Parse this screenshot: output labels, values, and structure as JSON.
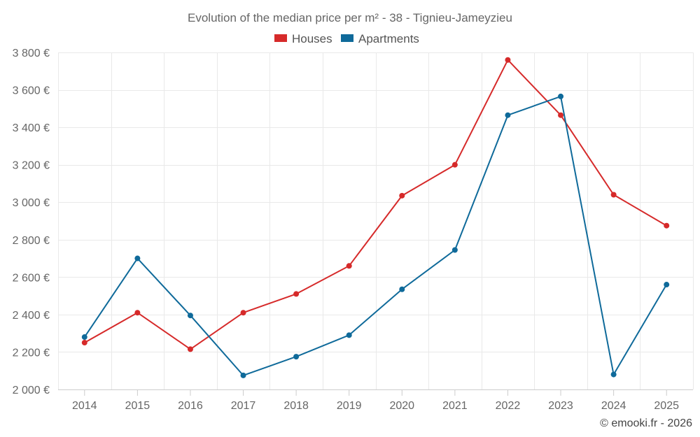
{
  "chart_data": {
    "type": "line",
    "title": "Evolution of the median price per m² - 38 - Tignieu-Jameyzieu",
    "categories": [
      "2014",
      "2015",
      "2016",
      "2017",
      "2018",
      "2019",
      "2020",
      "2021",
      "2022",
      "2023",
      "2024",
      "2025"
    ],
    "series": [
      {
        "name": "Houses",
        "color": "#d62a2a",
        "values": [
          2250,
          2410,
          2215,
          2410,
          2510,
          2660,
          3035,
          3200,
          3760,
          3465,
          3040,
          2875
        ]
      },
      {
        "name": "Apartments",
        "color": "#0f6a9a",
        "values": [
          2280,
          2700,
          2395,
          2075,
          2175,
          2290,
          2535,
          2745,
          3465,
          3565,
          2080,
          2560
        ]
      }
    ],
    "ylim": [
      2000,
      3800
    ],
    "yticks": [
      2000,
      2200,
      2400,
      2600,
      2800,
      3000,
      3200,
      3400,
      3600,
      3800
    ],
    "ytick_labels": [
      "2 000 €",
      "2 200 €",
      "2 400 €",
      "2 600 €",
      "2 800 €",
      "3 000 €",
      "3 200 €",
      "3 400 €",
      "3 600 €",
      "3 800 €"
    ],
    "xlabel": "",
    "ylabel": "",
    "legend": "top-center",
    "grid": true
  },
  "credit": "© emooki.fr - 2026"
}
